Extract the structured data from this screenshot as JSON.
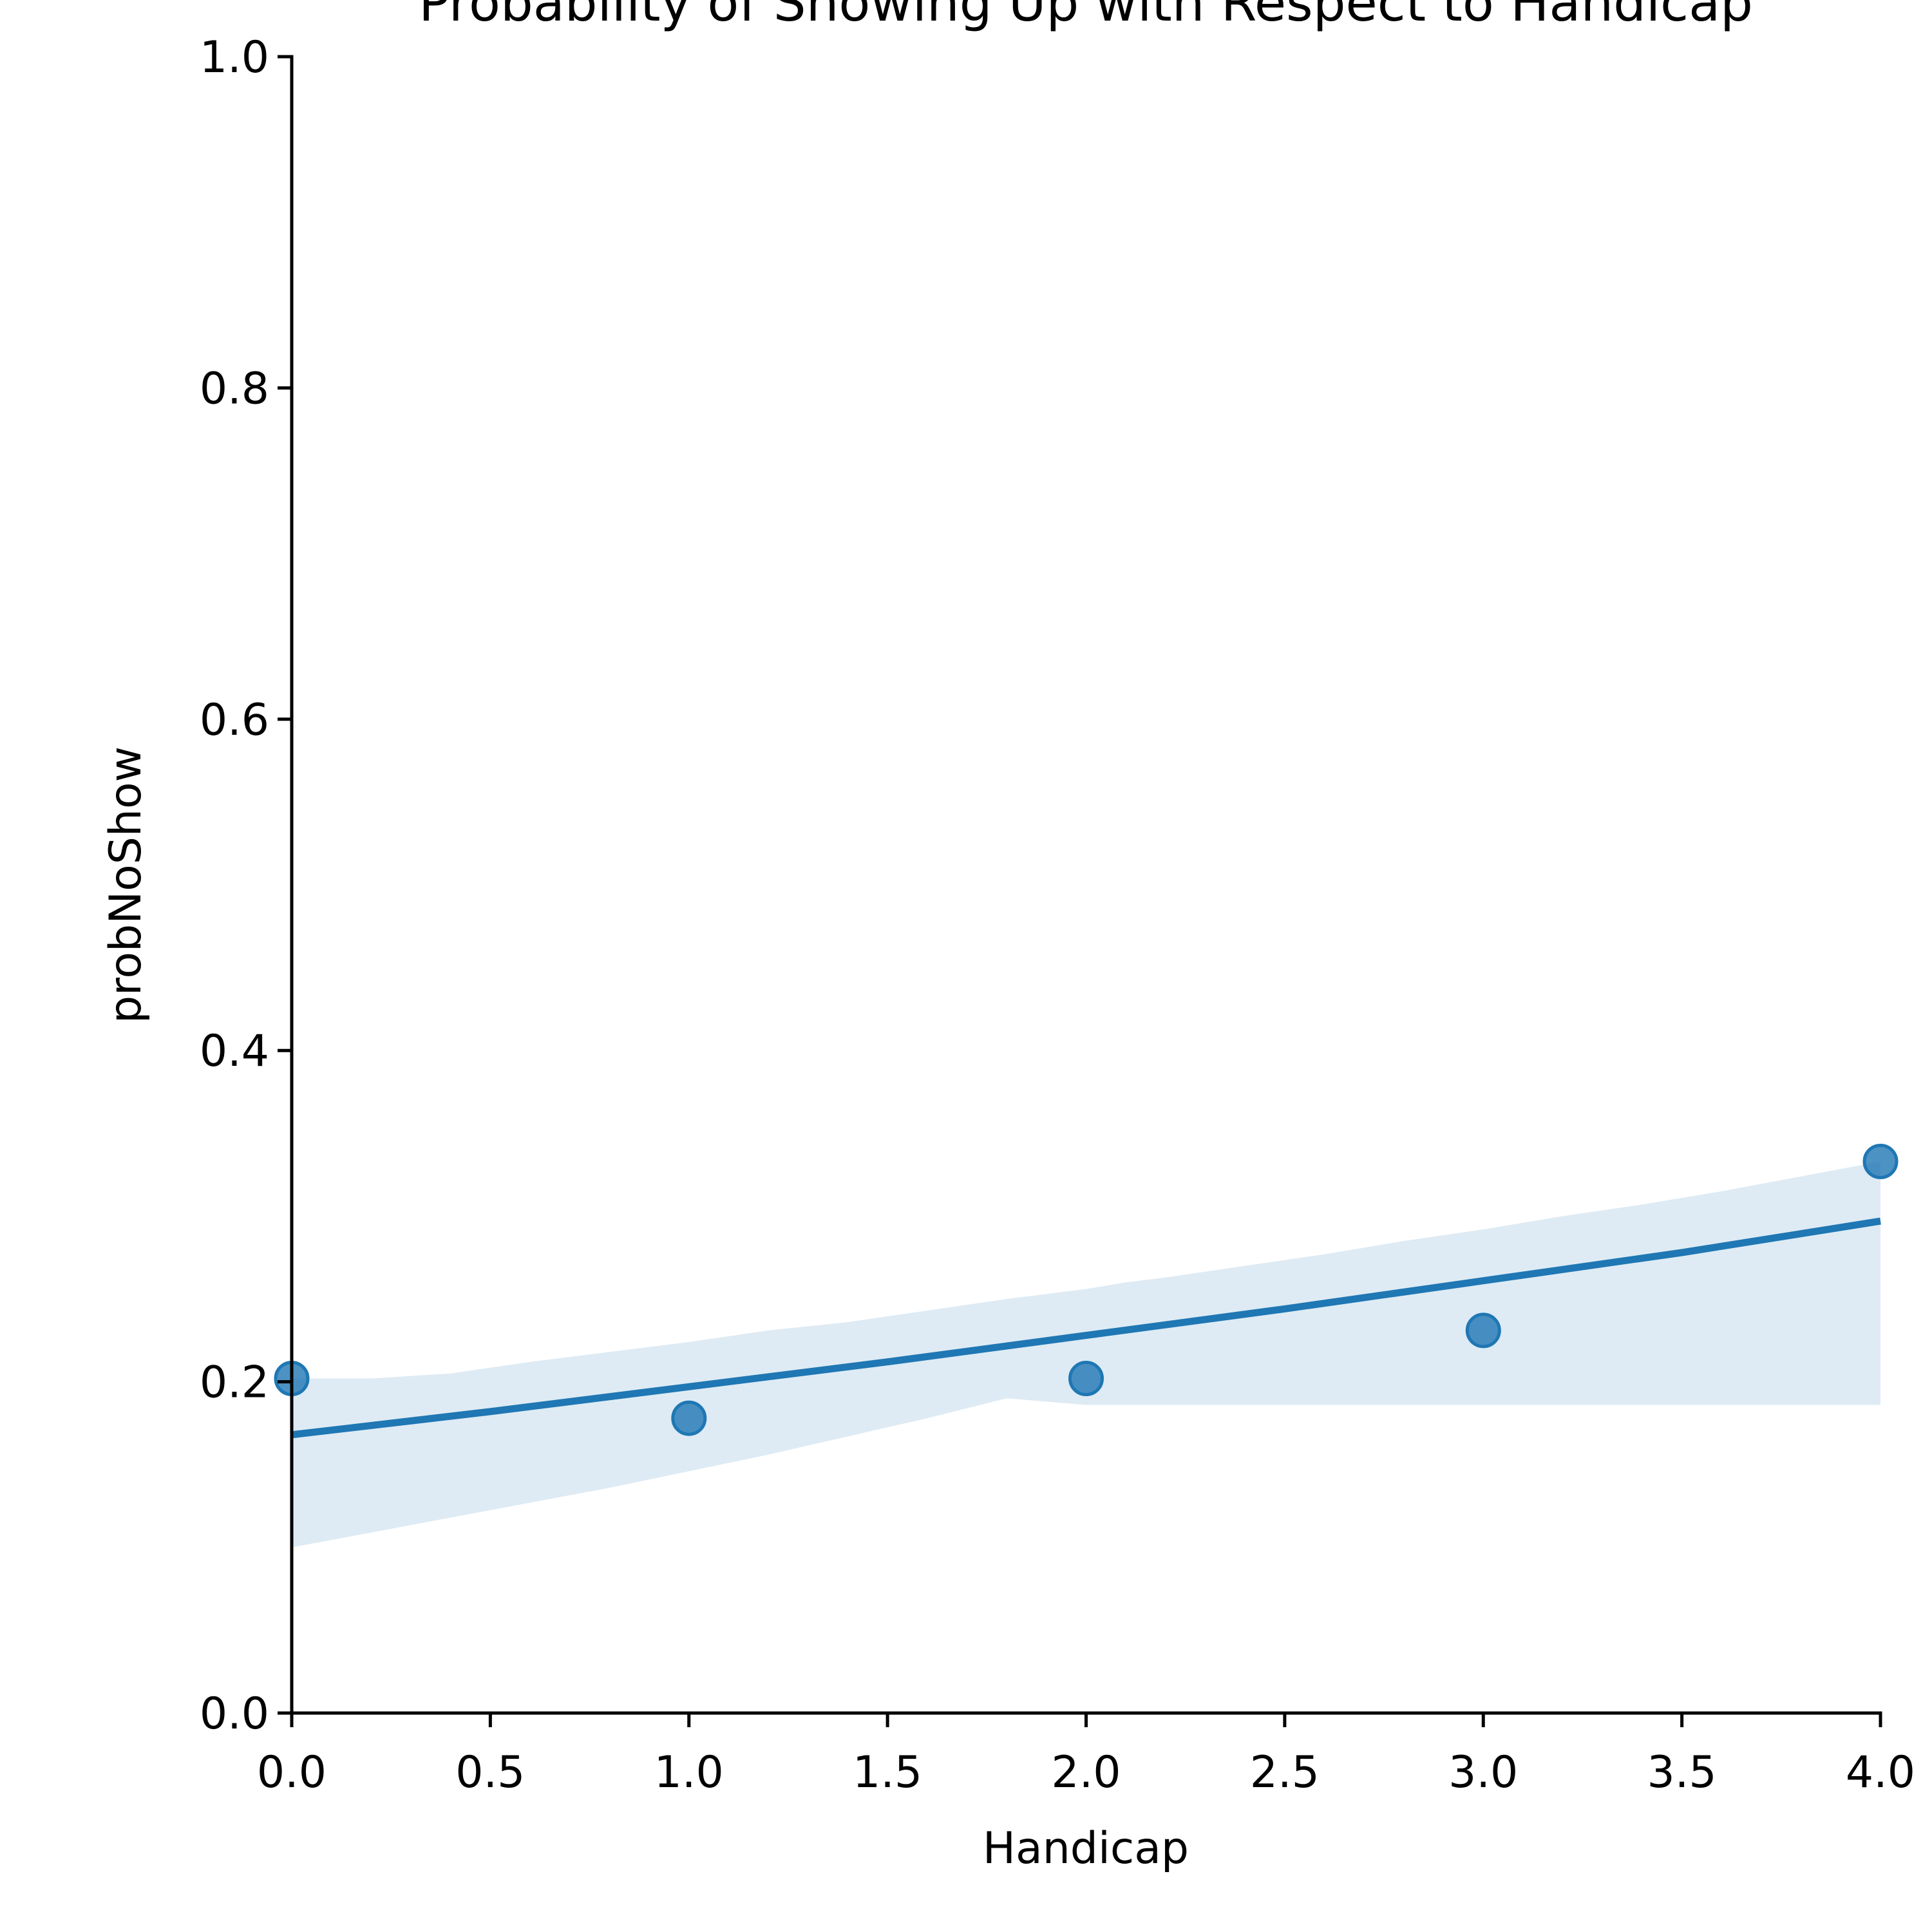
{
  "chart_data": {
    "type": "scatter",
    "title": "Probability of Showing Up with Respect to Handicap",
    "xlabel": "Handicap",
    "ylabel": "probNoShow",
    "xlim": [
      0,
      4
    ],
    "ylim": [
      0,
      1
    ],
    "x_ticks": [
      "0.0",
      "0.5",
      "1.0",
      "1.5",
      "2.0",
      "2.5",
      "3.0",
      "3.5",
      "4.0"
    ],
    "y_ticks": [
      "0.0",
      "0.2",
      "0.4",
      "0.6",
      "0.8",
      "1.0"
    ],
    "grid": false,
    "series": [
      {
        "kind": "points",
        "color": "#1f77b4",
        "x": [
          0,
          1,
          2,
          3,
          4
        ],
        "y": [
          0.202,
          0.178,
          0.202,
          0.231,
          0.333
        ]
      },
      {
        "kind": "regression-line",
        "color": "#1f77b4",
        "x": [
          0,
          0.5,
          1,
          1.5,
          2,
          2.5,
          3,
          3.5,
          4
        ],
        "y": [
          0.168,
          0.182,
          0.197,
          0.212,
          0.228,
          0.244,
          0.261,
          0.278,
          0.297
        ]
      },
      {
        "kind": "confidence-band",
        "color": "#1f77b4",
        "x": [
          0,
          0.2,
          0.4,
          0.6,
          0.8,
          1.0,
          1.2,
          1.4,
          1.6,
          1.8,
          2.0,
          2.1,
          2.2,
          2.4,
          2.6,
          2.8,
          3.0,
          3.2,
          3.4,
          3.6,
          3.8,
          4.0
        ],
        "upper": [
          0.202,
          0.202,
          0.205,
          0.212,
          0.218,
          0.224,
          0.231,
          0.236,
          0.243,
          0.25,
          0.256,
          0.26,
          0.263,
          0.27,
          0.277,
          0.285,
          0.292,
          0.3,
          0.307,
          0.315,
          0.324,
          0.333
        ],
        "lower": [
          0.1,
          0.109,
          0.118,
          0.127,
          0.136,
          0.146,
          0.156,
          0.167,
          0.178,
          0.19,
          0.186,
          0.186,
          0.186,
          0.186,
          0.186,
          0.186,
          0.186,
          0.186,
          0.186,
          0.186,
          0.186,
          0.186
        ]
      }
    ]
  }
}
